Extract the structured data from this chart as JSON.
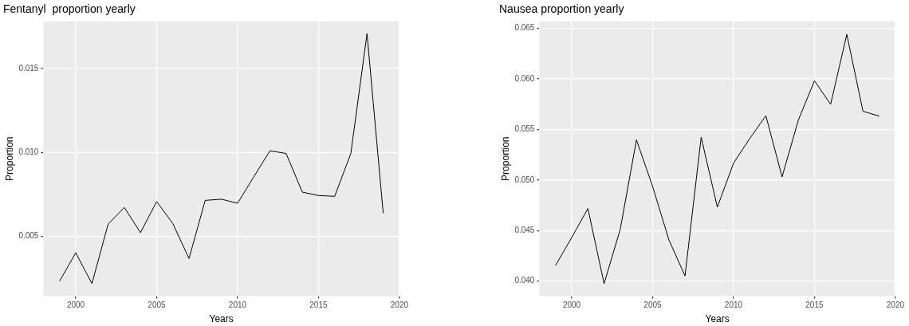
{
  "chart_data": [
    {
      "type": "line",
      "title": "Fentanyl  proportion yearly",
      "xlabel": "Years",
      "ylabel": "Proportion",
      "x": [
        1999,
        2000,
        2001,
        2002,
        2003,
        2004,
        2005,
        2006,
        2007,
        2008,
        2009,
        2010,
        2011,
        2012,
        2013,
        2014,
        2015,
        2016,
        2017,
        2018,
        2019
      ],
      "series": [
        {
          "color": "#000000",
          "values": [
            0.00235,
            0.00403,
            0.0022,
            0.00574,
            0.00673,
            0.00523,
            0.00708,
            0.00577,
            0.00369,
            0.00715,
            0.00722,
            0.00698,
            0.00855,
            0.0101,
            0.00994,
            0.00764,
            0.00744,
            0.00739,
            0.00994,
            0.01707,
            0.00639
          ]
        }
      ],
      "xlim": [
        1998,
        2020
      ],
      "xticks": [
        2000,
        2005,
        2010,
        2015,
        2020
      ],
      "ylim": [
        0.00145,
        0.0178
      ],
      "yticks": [
        0.005,
        {
          "value": 0.01,
          "label": "0.010"
        },
        0.015
      ],
      "grid": true
    },
    {
      "type": "line",
      "title": "Nausea proportion yearly",
      "xlabel": "Years",
      "ylabel": "Proportion",
      "x": [
        1999,
        2000,
        2001,
        2002,
        2003,
        2004,
        2005,
        2006,
        2007,
        2008,
        2009,
        2010,
        2011,
        2012,
        2013,
        2014,
        2015,
        2016,
        2017,
        2018,
        2019
      ],
      "series": [
        {
          "color": "#000000",
          "values": [
            0.04154,
            0.04431,
            0.04718,
            0.03974,
            0.04513,
            0.05397,
            0.04936,
            0.0441,
            0.04051,
            0.05423,
            0.04731,
            0.05167,
            0.0541,
            0.05636,
            0.05031,
            0.0559,
            0.05982,
            0.05749,
            0.06441,
            0.0568,
            0.05633
          ]
        }
      ],
      "xlim": [
        1998,
        2020
      ],
      "xticks": [
        2000,
        2005,
        2010,
        2015,
        2020
      ],
      "ylim": [
        0.0385,
        0.0657
      ],
      "yticks": [
        {
          "value": 0.04,
          "label": "0.040"
        },
        0.045,
        {
          "value": 0.05,
          "label": "0.050"
        },
        0.055,
        {
          "value": 0.06,
          "label": "0.060"
        },
        0.065
      ],
      "grid": true
    }
  ]
}
